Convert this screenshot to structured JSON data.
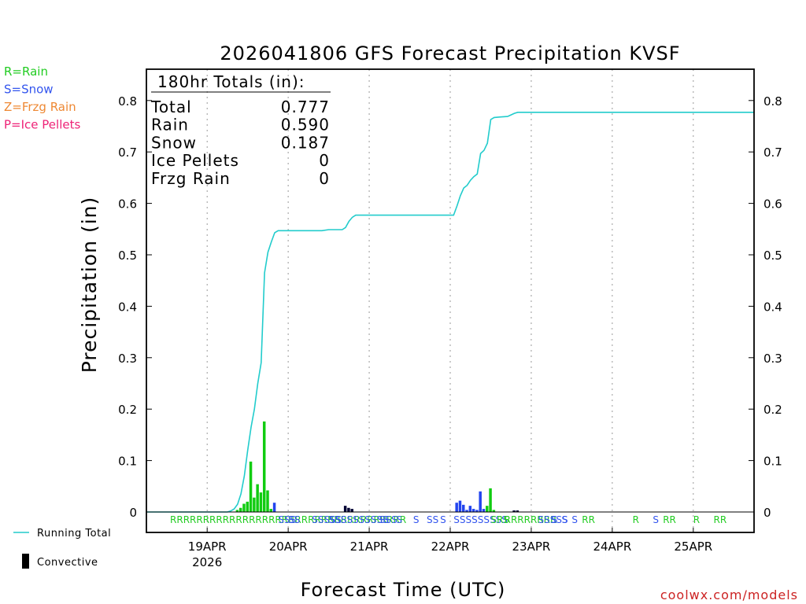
{
  "chart_data": {
    "type": "bar",
    "title": "2026041806 GFS Forecast Precipitation KVSF",
    "ylabel": "Precipitation (in)",
    "xlabel": "Forecast Time (UTC)",
    "credit": "coolwx.com/models",
    "ylim": [
      0,
      0.85
    ],
    "xlim_hours": [
      0,
      180
    ],
    "y_ticks": [
      0,
      0.1,
      0.2,
      0.3,
      0.4,
      0.5,
      0.6,
      0.7,
      0.8
    ],
    "y_tick_labels": [
      "0",
      "0.1",
      "0.2",
      "0.3",
      "0.4",
      "0.5",
      "0.6",
      "0.7",
      "0.8"
    ],
    "x_ticks": [
      {
        "hour": 18,
        "label": "19APR",
        "sublabel": "2026"
      },
      {
        "hour": 42,
        "label": "20APR",
        "sublabel": ""
      },
      {
        "hour": 66,
        "label": "21APR",
        "sublabel": ""
      },
      {
        "hour": 90,
        "label": "22APR",
        "sublabel": ""
      },
      {
        "hour": 114,
        "label": "23APR",
        "sublabel": ""
      },
      {
        "hour": 138,
        "label": "24APR",
        "sublabel": ""
      },
      {
        "hour": 162,
        "label": "25APR",
        "sublabel": ""
      }
    ],
    "type_legend": [
      {
        "text": "R=Rain",
        "color": "#22cc22"
      },
      {
        "text": "S=Snow",
        "color": "#3355ee"
      },
      {
        "text": "Z=Frzg Rain",
        "color": "#ee8833"
      },
      {
        "text": "P=Ice Pellets",
        "color": "#ee2277"
      }
    ],
    "series_legend": {
      "running_total": "Running Total",
      "convective": "Convective"
    },
    "totals": {
      "header": "180hr Totals (in):",
      "rows": [
        {
          "label": "Total",
          "value": "0.777"
        },
        {
          "label": "Rain",
          "value": "0.590"
        },
        {
          "label": "Snow",
          "value": "0.187"
        },
        {
          "label": "Ice Pellets",
          "value": "0"
        },
        {
          "label": "Frzg Rain",
          "value": "0"
        }
      ]
    },
    "colors": {
      "rain": "#11cc11",
      "snow": "#2244ee",
      "convective": "#000033",
      "running_total": "#22cccc"
    },
    "bars": [
      {
        "hour": 27,
        "value": 0.004,
        "type": "rain"
      },
      {
        "hour": 28,
        "value": 0.008,
        "type": "rain"
      },
      {
        "hour": 29,
        "value": 0.016,
        "type": "rain"
      },
      {
        "hour": 30,
        "value": 0.02,
        "type": "rain"
      },
      {
        "hour": 31,
        "value": 0.098,
        "type": "rain"
      },
      {
        "hour": 32,
        "value": 0.028,
        "type": "rain"
      },
      {
        "hour": 33,
        "value": 0.054,
        "type": "rain"
      },
      {
        "hour": 34,
        "value": 0.038,
        "type": "rain"
      },
      {
        "hour": 35,
        "value": 0.176,
        "type": "rain"
      },
      {
        "hour": 36,
        "value": 0.042,
        "type": "rain"
      },
      {
        "hour": 37,
        "value": 0.006,
        "type": "rain"
      },
      {
        "hour": 38,
        "value": 0.018,
        "type": "snow"
      },
      {
        "hour": 59,
        "value": 0.012,
        "type": "convective"
      },
      {
        "hour": 60,
        "value": 0.008,
        "type": "convective"
      },
      {
        "hour": 61,
        "value": 0.006,
        "type": "convective"
      },
      {
        "hour": 92,
        "value": 0.018,
        "type": "snow"
      },
      {
        "hour": 93,
        "value": 0.022,
        "type": "snow"
      },
      {
        "hour": 94,
        "value": 0.014,
        "type": "snow"
      },
      {
        "hour": 95,
        "value": 0.004,
        "type": "snow"
      },
      {
        "hour": 96,
        "value": 0.012,
        "type": "snow"
      },
      {
        "hour": 97,
        "value": 0.006,
        "type": "snow"
      },
      {
        "hour": 98,
        "value": 0.004,
        "type": "snow"
      },
      {
        "hour": 99,
        "value": 0.04,
        "type": "snow"
      },
      {
        "hour": 100,
        "value": 0.006,
        "type": "snow"
      },
      {
        "hour": 101,
        "value": 0.012,
        "type": "rain"
      },
      {
        "hour": 102,
        "value": 0.046,
        "type": "rain"
      },
      {
        "hour": 103,
        "value": 0.004,
        "type": "rain"
      },
      {
        "hour": 109,
        "value": 0.003,
        "type": "convective"
      },
      {
        "hour": 110,
        "value": 0.003,
        "type": "convective"
      }
    ],
    "running_total": [
      [
        0,
        0
      ],
      [
        24,
        0
      ],
      [
        25,
        0.002
      ],
      [
        26,
        0.006
      ],
      [
        27,
        0.015
      ],
      [
        28,
        0.035
      ],
      [
        29,
        0.07
      ],
      [
        30,
        0.12
      ],
      [
        31,
        0.165
      ],
      [
        32,
        0.2
      ],
      [
        33,
        0.25
      ],
      [
        34,
        0.29
      ],
      [
        35,
        0.465
      ],
      [
        36,
        0.505
      ],
      [
        37,
        0.525
      ],
      [
        38,
        0.543
      ],
      [
        39,
        0.547
      ],
      [
        52,
        0.547
      ],
      [
        54,
        0.549
      ],
      [
        58,
        0.549
      ],
      [
        59,
        0.553
      ],
      [
        60,
        0.565
      ],
      [
        61,
        0.573
      ],
      [
        62,
        0.577
      ],
      [
        91,
        0.577
      ],
      [
        92,
        0.595
      ],
      [
        93,
        0.615
      ],
      [
        94,
        0.63
      ],
      [
        95,
        0.635
      ],
      [
        96,
        0.645
      ],
      [
        97,
        0.652
      ],
      [
        98,
        0.657
      ],
      [
        99,
        0.697
      ],
      [
        100,
        0.703
      ],
      [
        101,
        0.717
      ],
      [
        102,
        0.763
      ],
      [
        103,
        0.767
      ],
      [
        105,
        0.768
      ],
      [
        107,
        0.769
      ],
      [
        108,
        0.772
      ],
      [
        109,
        0.775
      ],
      [
        110,
        0.777
      ],
      [
        180,
        0.777
      ]
    ],
    "precip_type_marks": [
      {
        "hour": 7,
        "text": "RRRRRRRRRRRRRRRRRRRRRRRRRRRRRRRRRRRR",
        "color": "#22cc22"
      },
      {
        "hour": 39,
        "text": "SSS",
        "color": "#3355ee"
      },
      {
        "hour": 42,
        "text": "SS",
        "color": "#3355ee"
      },
      {
        "hour": 49,
        "text": "SSSSS",
        "color": "#3355ee"
      },
      {
        "hour": 54,
        "text": "SSSSSSSSSS",
        "color": "#3355ee"
      },
      {
        "hour": 69,
        "text": "SSS",
        "color": "#3355ee"
      },
      {
        "hour": 74,
        "text": "S",
        "color": "#3355ee"
      },
      {
        "hour": 79,
        "text": "S",
        "color": "#3355ee"
      },
      {
        "hour": 83,
        "text": "SS",
        "color": "#3355ee"
      },
      {
        "hour": 87,
        "text": "S",
        "color": "#3355ee"
      },
      {
        "hour": 91,
        "text": "SSSSSSSSS",
        "color": "#3355ee"
      },
      {
        "hour": 102,
        "text": "SRS",
        "color": "#22cc22"
      },
      {
        "hour": 106,
        "text": "RRRRRRRR",
        "color": "#22cc22"
      },
      {
        "hour": 116,
        "text": "SSSSS",
        "color": "#3355ee"
      },
      {
        "hour": 120,
        "text": "S",
        "color": "#3355ee"
      },
      {
        "hour": 123,
        "text": "S",
        "color": "#3355ee"
      },
      {
        "hour": 126,
        "text": "S",
        "color": "#3355ee"
      },
      {
        "hour": 129,
        "text": "RR",
        "color": "#22cc22"
      },
      {
        "hour": 144,
        "text": "R",
        "color": "#22cc22"
      },
      {
        "hour": 150,
        "text": "S",
        "color": "#3355ee"
      },
      {
        "hour": 153,
        "text": "RR",
        "color": "#22cc22"
      },
      {
        "hour": 162,
        "text": "R",
        "color": "#22cc22"
      },
      {
        "hour": 168,
        "text": "RR",
        "color": "#22cc22"
      }
    ]
  }
}
